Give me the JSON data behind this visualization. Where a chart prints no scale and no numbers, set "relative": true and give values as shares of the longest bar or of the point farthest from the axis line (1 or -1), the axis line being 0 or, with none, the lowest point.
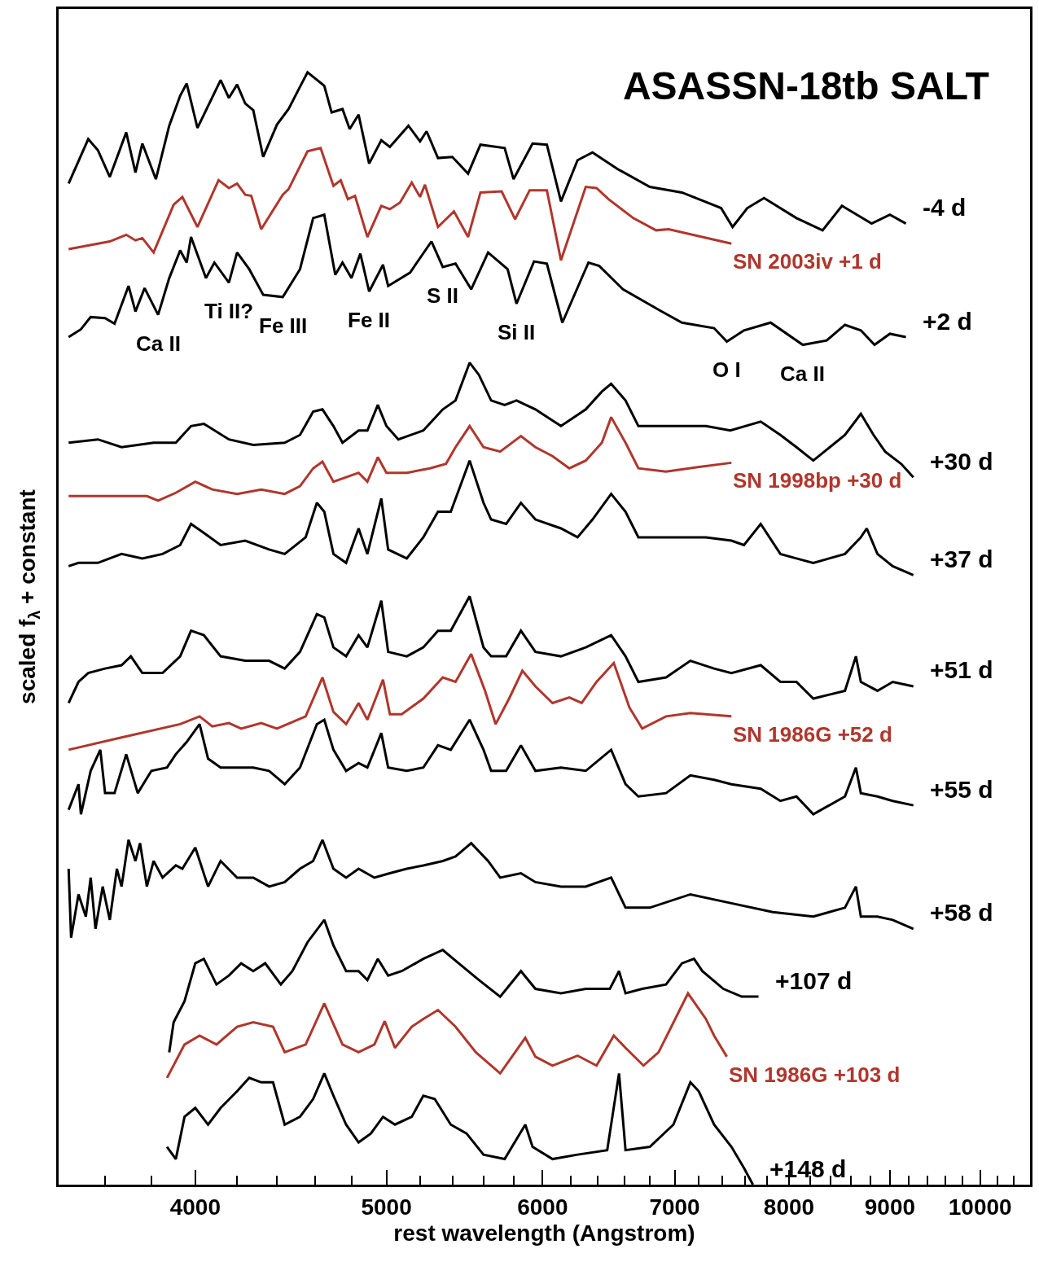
{
  "chart_data": {
    "type": "line",
    "relative": true,
    "title": "ASASSN-18tb SALT",
    "xlabel": "rest wavelength (Angstrom)",
    "ylabel": "scaled f$_{λ}$ + constant",
    "log": "x",
    "xlim": [
      3410,
      10600
    ],
    "xticks": [
      {
        "value": 3600,
        "label": null
      },
      {
        "value": 3800,
        "label": null
      },
      4000,
      {
        "value": 4200,
        "label": null
      },
      {
        "value": 4400,
        "label": null
      },
      {
        "value": 4600,
        "label": null
      },
      {
        "value": 4800,
        "label": null
      },
      5000,
      {
        "value": 5200,
        "label": null
      },
      {
        "value": 5400,
        "label": null
      },
      {
        "value": 5600,
        "label": null
      },
      {
        "value": 5800,
        "label": null
      },
      6000,
      {
        "value": 6200,
        "label": null
      },
      {
        "value": 6400,
        "label": null
      },
      {
        "value": 6600,
        "label": null
      },
      {
        "value": 6800,
        "label": null
      },
      7000,
      {
        "value": 7200,
        "label": null
      },
      {
        "value": 7400,
        "label": null
      },
      {
        "value": 7600,
        "label": null
      },
      {
        "value": 7800,
        "label": null
      },
      8000,
      {
        "value": 8200,
        "label": null
      },
      {
        "value": 8400,
        "label": null
      },
      {
        "value": 8600,
        "label": null
      },
      {
        "value": 8800,
        "label": null
      },
      9000,
      {
        "value": 9200,
        "label": null
      },
      {
        "value": 9400,
        "label": null
      },
      {
        "value": 9600,
        "label": null
      },
      {
        "value": 9800,
        "label": null
      },
      10000,
      {
        "value": 10200,
        "label": null
      },
      {
        "value": 10400,
        "label": null
      }
    ],
    "annotations": [
      {
        "text": "Ca II",
        "x": 3830,
        "y": 0.782
      },
      {
        "text": "Ti II?",
        "x": 4160,
        "y": 0.811
      },
      {
        "text": "Fe III",
        "x": 4430,
        "y": 0.798
      },
      {
        "text": "Fe II",
        "x": 4900,
        "y": 0.803
      },
      {
        "text": "S II",
        "x": 5340,
        "y": 0.825
      },
      {
        "text": "Si II",
        "x": 5820,
        "y": 0.792
      },
      {
        "text": "O I",
        "x": 7440,
        "y": 0.758
      },
      {
        "text": "Ca II",
        "x": 8130,
        "y": 0.755
      }
    ],
    "series": [
      {
        "name": "-4 d",
        "color": "#000000",
        "x": [
          3450,
          3530,
          3570,
          3620,
          3690,
          3730,
          3760,
          3820,
          3880,
          3930,
          3960,
          4010,
          4120,
          4160,
          4200,
          4240,
          4280,
          4330,
          4400,
          4460,
          4520,
          4560,
          4650,
          4690,
          4750,
          4790,
          4840,
          4900,
          4970,
          5020,
          5130,
          5200,
          5240,
          5310,
          5400,
          5500,
          5580,
          5740,
          5800,
          5930,
          6030,
          6130,
          6250,
          6360,
          6550,
          6800,
          7060,
          7390,
          7490,
          7620,
          7770,
          8070,
          8320,
          8510,
          8810,
          9000,
          9170
        ],
        "values": [
          0.9,
          0.94,
          0.93,
          0.906,
          0.946,
          0.91,
          0.936,
          0.904,
          0.952,
          0.979,
          0.99,
          0.95,
          0.993,
          0.977,
          0.989,
          0.972,
          0.966,
          0.924,
          0.953,
          0.967,
          0.987,
          1.0,
          0.988,
          0.964,
          0.967,
          0.949,
          0.962,
          0.918,
          0.939,
          0.933,
          0.952,
          0.938,
          0.947,
          0.923,
          0.924,
          0.909,
          0.935,
          0.932,
          0.904,
          0.936,
          0.935,
          0.884,
          0.921,
          0.928,
          0.913,
          0.897,
          0.892,
          0.878,
          0.861,
          0.878,
          0.887,
          0.869,
          0.858,
          0.88,
          0.864,
          0.872,
          0.864
        ]
      },
      {
        "name": "SN 2003iv +1 d",
        "color": "#b0362c",
        "x": [
          3450,
          3620,
          3690,
          3730,
          3760,
          3810,
          3900,
          3940,
          4010,
          4110,
          4160,
          4200,
          4240,
          4270,
          4320,
          4430,
          4460,
          4560,
          4630,
          4700,
          4740,
          4780,
          4820,
          4890,
          4970,
          5020,
          5080,
          5150,
          5200,
          5230,
          5310,
          5410,
          5500,
          5580,
          5720,
          5810,
          5910,
          6030,
          6130,
          6310,
          6390,
          6480,
          6670,
          6850,
          6950,
          7480
        ],
        "values": [
          0.841,
          0.848,
          0.854,
          0.849,
          0.851,
          0.838,
          0.881,
          0.888,
          0.861,
          0.903,
          0.896,
          0.9,
          0.89,
          0.889,
          0.859,
          0.89,
          0.895,
          0.929,
          0.932,
          0.898,
          0.903,
          0.886,
          0.889,
          0.852,
          0.88,
          0.877,
          0.883,
          0.901,
          0.888,
          0.899,
          0.861,
          0.875,
          0.852,
          0.892,
          0.893,
          0.868,
          0.894,
          0.894,
          0.831,
          0.897,
          0.896,
          0.886,
          0.869,
          0.858,
          0.859,
          0.846
        ]
      },
      {
        "name": "+2 d",
        "color": "#000000",
        "x": [
          3450,
          3500,
          3540,
          3600,
          3640,
          3700,
          3730,
          3770,
          3830,
          3880,
          3930,
          3960,
          3980,
          4050,
          4090,
          4160,
          4200,
          4260,
          4330,
          4430,
          4520,
          4590,
          4650,
          4710,
          4750,
          4800,
          4850,
          4900,
          4980,
          5010,
          5140,
          5270,
          5340,
          5420,
          5520,
          5630,
          5760,
          5820,
          5940,
          6030,
          6140,
          6330,
          6410,
          6590,
          6880,
          7060,
          7330,
          7440,
          7590,
          7830,
          8130,
          8360,
          8540,
          8700,
          8840,
          9000,
          9170
        ],
        "values": [
          0.762,
          0.769,
          0.78,
          0.779,
          0.774,
          0.808,
          0.785,
          0.806,
          0.782,
          0.815,
          0.84,
          0.829,
          0.852,
          0.815,
          0.829,
          0.811,
          0.838,
          0.823,
          0.8,
          0.798,
          0.823,
          0.869,
          0.872,
          0.818,
          0.829,
          0.815,
          0.837,
          0.803,
          0.827,
          0.808,
          0.82,
          0.848,
          0.825,
          0.828,
          0.805,
          0.838,
          0.823,
          0.792,
          0.83,
          0.828,
          0.775,
          0.829,
          0.826,
          0.805,
          0.786,
          0.775,
          0.77,
          0.758,
          0.768,
          0.775,
          0.755,
          0.759,
          0.773,
          0.768,
          0.755,
          0.765,
          0.762
        ]
      },
      {
        "name": "+30 d",
        "color": "#000000",
        "x": [
          3450,
          3570,
          3670,
          3810,
          3910,
          3980,
          4040,
          4160,
          4280,
          4440,
          4520,
          4590,
          4640,
          4700,
          4750,
          4840,
          4890,
          4950,
          5000,
          5070,
          5220,
          5340,
          5420,
          5510,
          5570,
          5650,
          5740,
          5820,
          5950,
          6130,
          6310,
          6430,
          6500,
          6610,
          6710,
          6930,
          7260,
          7470,
          7740,
          7920,
          8070,
          8230,
          8540,
          8700,
          8830,
          8950,
          9120,
          9250
        ],
        "values": [
          0.667,
          0.67,
          0.663,
          0.667,
          0.667,
          0.682,
          0.684,
          0.67,
          0.665,
          0.667,
          0.674,
          0.695,
          0.697,
          0.682,
          0.667,
          0.678,
          0.678,
          0.701,
          0.682,
          0.67,
          0.678,
          0.697,
          0.705,
          0.739,
          0.728,
          0.705,
          0.701,
          0.705,
          0.697,
          0.682,
          0.697,
          0.713,
          0.72,
          0.705,
          0.682,
          0.682,
          0.682,
          0.678,
          0.686,
          0.674,
          0.663,
          0.651,
          0.674,
          0.693,
          0.674,
          0.659,
          0.648,
          0.636
        ]
      },
      {
        "name": "SN 1998bp +30 d",
        "color": "#b0362c",
        "x": [
          3450,
          3670,
          3780,
          3830,
          3910,
          4000,
          4080,
          4200,
          4320,
          4440,
          4520,
          4590,
          4640,
          4700,
          4770,
          4840,
          4890,
          4950,
          5000,
          5120,
          5260,
          5360,
          5420,
          5510,
          5600,
          5710,
          5850,
          5950,
          6070,
          6190,
          6310,
          6430,
          6500,
          6610,
          6710,
          6930,
          7190,
          7480
        ],
        "values": [
          0.619,
          0.619,
          0.619,
          0.615,
          0.622,
          0.632,
          0.625,
          0.621,
          0.625,
          0.621,
          0.628,
          0.644,
          0.65,
          0.632,
          0.636,
          0.64,
          0.632,
          0.654,
          0.64,
          0.64,
          0.644,
          0.648,
          0.663,
          0.682,
          0.663,
          0.659,
          0.673,
          0.663,
          0.655,
          0.644,
          0.651,
          0.667,
          0.69,
          0.667,
          0.644,
          0.641,
          0.645,
          0.649
        ]
      },
      {
        "name": "+37 d",
        "color": "#000000",
        "x": [
          3450,
          3490,
          3570,
          3670,
          3760,
          3850,
          3930,
          3980,
          4040,
          4120,
          4240,
          4360,
          4440,
          4550,
          4610,
          4650,
          4700,
          4770,
          4840,
          4890,
          4970,
          5010,
          5120,
          5220,
          5310,
          5390,
          5510,
          5600,
          5650,
          5750,
          5850,
          5950,
          6130,
          6250,
          6360,
          6500,
          6610,
          6710,
          6930,
          7260,
          7480,
          7590,
          7740,
          7920,
          8070,
          8230,
          8540,
          8700,
          8760,
          8870,
          9030,
          9250
        ],
        "values": [
          0.556,
          0.559,
          0.559,
          0.567,
          0.563,
          0.567,
          0.575,
          0.594,
          0.586,
          0.575,
          0.579,
          0.571,
          0.567,
          0.582,
          0.613,
          0.605,
          0.567,
          0.559,
          0.59,
          0.567,
          0.617,
          0.571,
          0.563,
          0.582,
          0.605,
          0.605,
          0.651,
          0.613,
          0.598,
          0.594,
          0.613,
          0.598,
          0.59,
          0.582,
          0.598,
          0.621,
          0.605,
          0.582,
          0.582,
          0.582,
          0.579,
          0.575,
          0.594,
          0.567,
          0.563,
          0.559,
          0.567,
          0.582,
          0.59,
          0.567,
          0.556,
          0.548
        ]
      },
      {
        "name": "+51 d",
        "color": "#000000",
        "x": [
          3450,
          3490,
          3530,
          3600,
          3670,
          3710,
          3760,
          3850,
          3930,
          3980,
          4040,
          4120,
          4240,
          4360,
          4440,
          4520,
          4610,
          4650,
          4700,
          4770,
          4840,
          4890,
          4970,
          5010,
          5120,
          5220,
          5310,
          5390,
          5510,
          5600,
          5650,
          5750,
          5850,
          5950,
          6130,
          6310,
          6500,
          6610,
          6710,
          6930,
          7130,
          7330,
          7480,
          7740,
          7920,
          8070,
          8230,
          8540,
          8650,
          8700,
          8870,
          9030,
          9250
        ],
        "values": [
          0.433,
          0.452,
          0.46,
          0.464,
          0.467,
          0.475,
          0.46,
          0.46,
          0.475,
          0.498,
          0.494,
          0.475,
          0.471,
          0.471,
          0.464,
          0.479,
          0.513,
          0.51,
          0.483,
          0.475,
          0.494,
          0.483,
          0.525,
          0.479,
          0.475,
          0.483,
          0.498,
          0.498,
          0.529,
          0.483,
          0.475,
          0.475,
          0.498,
          0.479,
          0.475,
          0.483,
          0.494,
          0.475,
          0.452,
          0.456,
          0.471,
          0.464,
          0.46,
          0.467,
          0.452,
          0.452,
          0.437,
          0.444,
          0.475,
          0.452,
          0.444,
          0.452,
          0.448
        ]
      },
      {
        "name": "SN 1986G +52 d",
        "color": "#b0362c",
        "x": [
          3450,
          3670,
          3930,
          4020,
          4080,
          4160,
          4220,
          4320,
          4400,
          4550,
          4640,
          4700,
          4770,
          4840,
          4890,
          4980,
          5020,
          5090,
          5220,
          5340,
          5420,
          5520,
          5610,
          5680,
          5770,
          5860,
          5950,
          6070,
          6190,
          6280,
          6390,
          6520,
          6640,
          6740,
          6930,
          7130,
          7480
        ],
        "values": [
          0.391,
          0.402,
          0.414,
          0.421,
          0.412,
          0.415,
          0.41,
          0.415,
          0.41,
          0.421,
          0.456,
          0.425,
          0.414,
          0.433,
          0.418,
          0.454,
          0.423,
          0.423,
          0.437,
          0.456,
          0.452,
          0.477,
          0.444,
          0.414,
          0.437,
          0.462,
          0.448,
          0.433,
          0.438,
          0.433,
          0.452,
          0.469,
          0.429,
          0.41,
          0.421,
          0.424,
          0.421
        ]
      },
      {
        "name": "+55 d",
        "color": "#000000",
        "x": [
          3450,
          3490,
          3500,
          3540,
          3580,
          3600,
          3640,
          3690,
          3740,
          3800,
          3870,
          3910,
          3960,
          4020,
          4060,
          4120,
          4200,
          4280,
          4360,
          4440,
          4520,
          4610,
          4650,
          4700,
          4770,
          4840,
          4890,
          4970,
          5010,
          5120,
          5220,
          5310,
          5390,
          5510,
          5600,
          5650,
          5750,
          5850,
          5950,
          6130,
          6310,
          6500,
          6610,
          6710,
          6930,
          7130,
          7330,
          7480,
          7740,
          7920,
          8070,
          8230,
          8540,
          8650,
          8700,
          8870,
          9030,
          9250
        ],
        "values": [
          0.337,
          0.36,
          0.333,
          0.372,
          0.391,
          0.352,
          0.352,
          0.387,
          0.352,
          0.372,
          0.375,
          0.387,
          0.398,
          0.414,
          0.383,
          0.375,
          0.375,
          0.375,
          0.372,
          0.36,
          0.375,
          0.414,
          0.418,
          0.391,
          0.372,
          0.379,
          0.375,
          0.406,
          0.375,
          0.372,
          0.375,
          0.395,
          0.391,
          0.418,
          0.391,
          0.372,
          0.372,
          0.395,
          0.372,
          0.375,
          0.372,
          0.391,
          0.36,
          0.349,
          0.352,
          0.368,
          0.364,
          0.36,
          0.356,
          0.345,
          0.349,
          0.333,
          0.349,
          0.375,
          0.352,
          0.349,
          0.345,
          0.341
        ]
      },
      {
        "name": "+58 d",
        "color": "#000000",
        "x": [
          3450,
          3460,
          3490,
          3520,
          3540,
          3560,
          3590,
          3620,
          3650,
          3670,
          3700,
          3730,
          3750,
          3780,
          3810,
          3850,
          3910,
          3940,
          4000,
          4060,
          4120,
          4200,
          4280,
          4360,
          4440,
          4520,
          4590,
          4640,
          4700,
          4770,
          4840,
          4930,
          5020,
          5120,
          5220,
          5340,
          5420,
          5520,
          5630,
          5710,
          5850,
          5950,
          6130,
          6310,
          6500,
          6610,
          6800,
          7130,
          7480,
          7850,
          8230,
          8540,
          8650,
          8700,
          8870,
          9030,
          9250
        ],
        "values": [
          0.284,
          0.222,
          0.261,
          0.241,
          0.276,
          0.23,
          0.268,
          0.238,
          0.284,
          0.268,
          0.31,
          0.291,
          0.307,
          0.268,
          0.291,
          0.276,
          0.287,
          0.284,
          0.303,
          0.268,
          0.291,
          0.276,
          0.276,
          0.268,
          0.272,
          0.284,
          0.291,
          0.31,
          0.284,
          0.276,
          0.284,
          0.276,
          0.28,
          0.284,
          0.287,
          0.291,
          0.295,
          0.307,
          0.291,
          0.276,
          0.28,
          0.272,
          0.268,
          0.268,
          0.276,
          0.249,
          0.249,
          0.261,
          0.253,
          0.245,
          0.241,
          0.249,
          0.268,
          0.241,
          0.241,
          0.238,
          0.23
        ]
      },
      {
        "name": "+107 d",
        "color": "#000000",
        "x": [
          3880,
          3900,
          3950,
          4000,
          4040,
          4100,
          4160,
          4220,
          4280,
          4340,
          4420,
          4480,
          4560,
          4650,
          4700,
          4770,
          4840,
          4890,
          4950,
          5010,
          5090,
          5220,
          5340,
          5440,
          5570,
          5710,
          5850,
          5950,
          6130,
          6310,
          6490,
          6560,
          6610,
          6740,
          6930,
          7060,
          7160,
          7230,
          7410,
          7570,
          7720
        ],
        "values": [
          0.119,
          0.146,
          0.165,
          0.199,
          0.203,
          0.18,
          0.188,
          0.199,
          0.192,
          0.199,
          0.18,
          0.192,
          0.218,
          0.238,
          0.215,
          0.192,
          0.192,
          0.184,
          0.203,
          0.188,
          0.192,
          0.203,
          0.211,
          0.199,
          0.184,
          0.169,
          0.192,
          0.176,
          0.172,
          0.176,
          0.176,
          0.192,
          0.172,
          0.176,
          0.18,
          0.199,
          0.203,
          0.192,
          0.176,
          0.169,
          0.169
        ]
      },
      {
        "name": "SN 1986G +103 d",
        "color": "#b0362c",
        "x": [
          3870,
          3950,
          4020,
          4100,
          4200,
          4280,
          4380,
          4440,
          4550,
          4650,
          4750,
          4840,
          4930,
          4990,
          5050,
          5150,
          5220,
          5310,
          5420,
          5550,
          5710,
          5880,
          5950,
          6070,
          6250,
          6390,
          6520,
          6610,
          6750,
          6870,
          7110,
          7260,
          7330,
          7440
        ],
        "values": [
          0.096,
          0.126,
          0.134,
          0.126,
          0.142,
          0.146,
          0.142,
          0.119,
          0.126,
          0.163,
          0.126,
          0.119,
          0.126,
          0.147,
          0.123,
          0.142,
          0.149,
          0.157,
          0.142,
          0.119,
          0.1,
          0.132,
          0.115,
          0.107,
          0.116,
          0.107,
          0.134,
          0.123,
          0.107,
          0.119,
          0.172,
          0.149,
          0.134,
          0.115
        ]
      },
      {
        "name": "+148 d",
        "color": "#000000",
        "x": [
          3870,
          3910,
          3950,
          4000,
          4060,
          4120,
          4200,
          4260,
          4320,
          4380,
          4440,
          4520,
          4590,
          4650,
          4700,
          4770,
          4840,
          4910,
          4980,
          5050,
          5150,
          5220,
          5290,
          5390,
          5490,
          5600,
          5740,
          5880,
          5930,
          6070,
          6250,
          6470,
          6560,
          6610,
          6800,
          6990,
          7130,
          7200,
          7330,
          7480,
          7590,
          7670
        ],
        "values": [
          0.034,
          0.023,
          0.061,
          0.069,
          0.054,
          0.069,
          0.084,
          0.096,
          0.092,
          0.092,
          0.054,
          0.061,
          0.077,
          0.1,
          0.08,
          0.054,
          0.038,
          0.046,
          0.061,
          0.054,
          0.061,
          0.08,
          0.077,
          0.054,
          0.046,
          0.027,
          0.023,
          0.054,
          0.034,
          0.023,
          0.027,
          0.031,
          0.1,
          0.031,
          0.034,
          0.054,
          0.092,
          0.084,
          0.054,
          0.034,
          0.015,
          0.0
        ]
      }
    ]
  }
}
